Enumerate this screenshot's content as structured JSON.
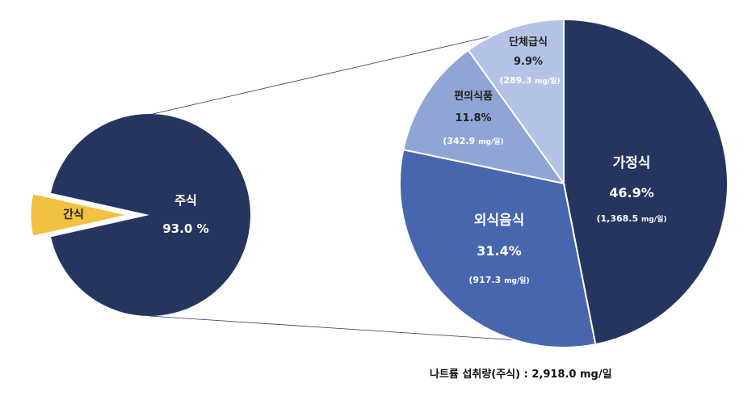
{
  "colors": {
    "home": "#263560",
    "eating_out": "#4866AE",
    "convenience": "#8FA5D6",
    "group_meal": "#B4C3E5",
    "main_meal": "#263560",
    "snack": "#F3C140",
    "white_text": "#FFFFFF",
    "dark_text": "#222222",
    "light_value": "#DDE3F2"
  },
  "chart_data": [
    {
      "type": "pie",
      "slices": [
        {
          "label": "주식",
          "value": 93.0,
          "display": "93.0 %"
        },
        {
          "label": "간식",
          "value": 7.0,
          "display": ""
        }
      ]
    },
    {
      "type": "pie",
      "slices": [
        {
          "label": "가정식",
          "value": 46.9,
          "display": "46.9%",
          "amount": "(1,368.5",
          "unit": "mg/일)"
        },
        {
          "label": "외식음식",
          "value": 31.4,
          "display": "31.4%",
          "amount": "(917.3",
          "unit": "mg/일)"
        },
        {
          "label": "편의식품",
          "value": 11.8,
          "display": "11.8%",
          "amount": "(342.9",
          "unit": "mg/일)"
        },
        {
          "label": "단체급식",
          "value": 9.9,
          "display": "9.9%",
          "amount": "(289.3",
          "unit": "mg/일)"
        }
      ]
    }
  ],
  "footer": {
    "caption": "나트륨 섭취량(주식) : 2,918.0 mg/일"
  }
}
